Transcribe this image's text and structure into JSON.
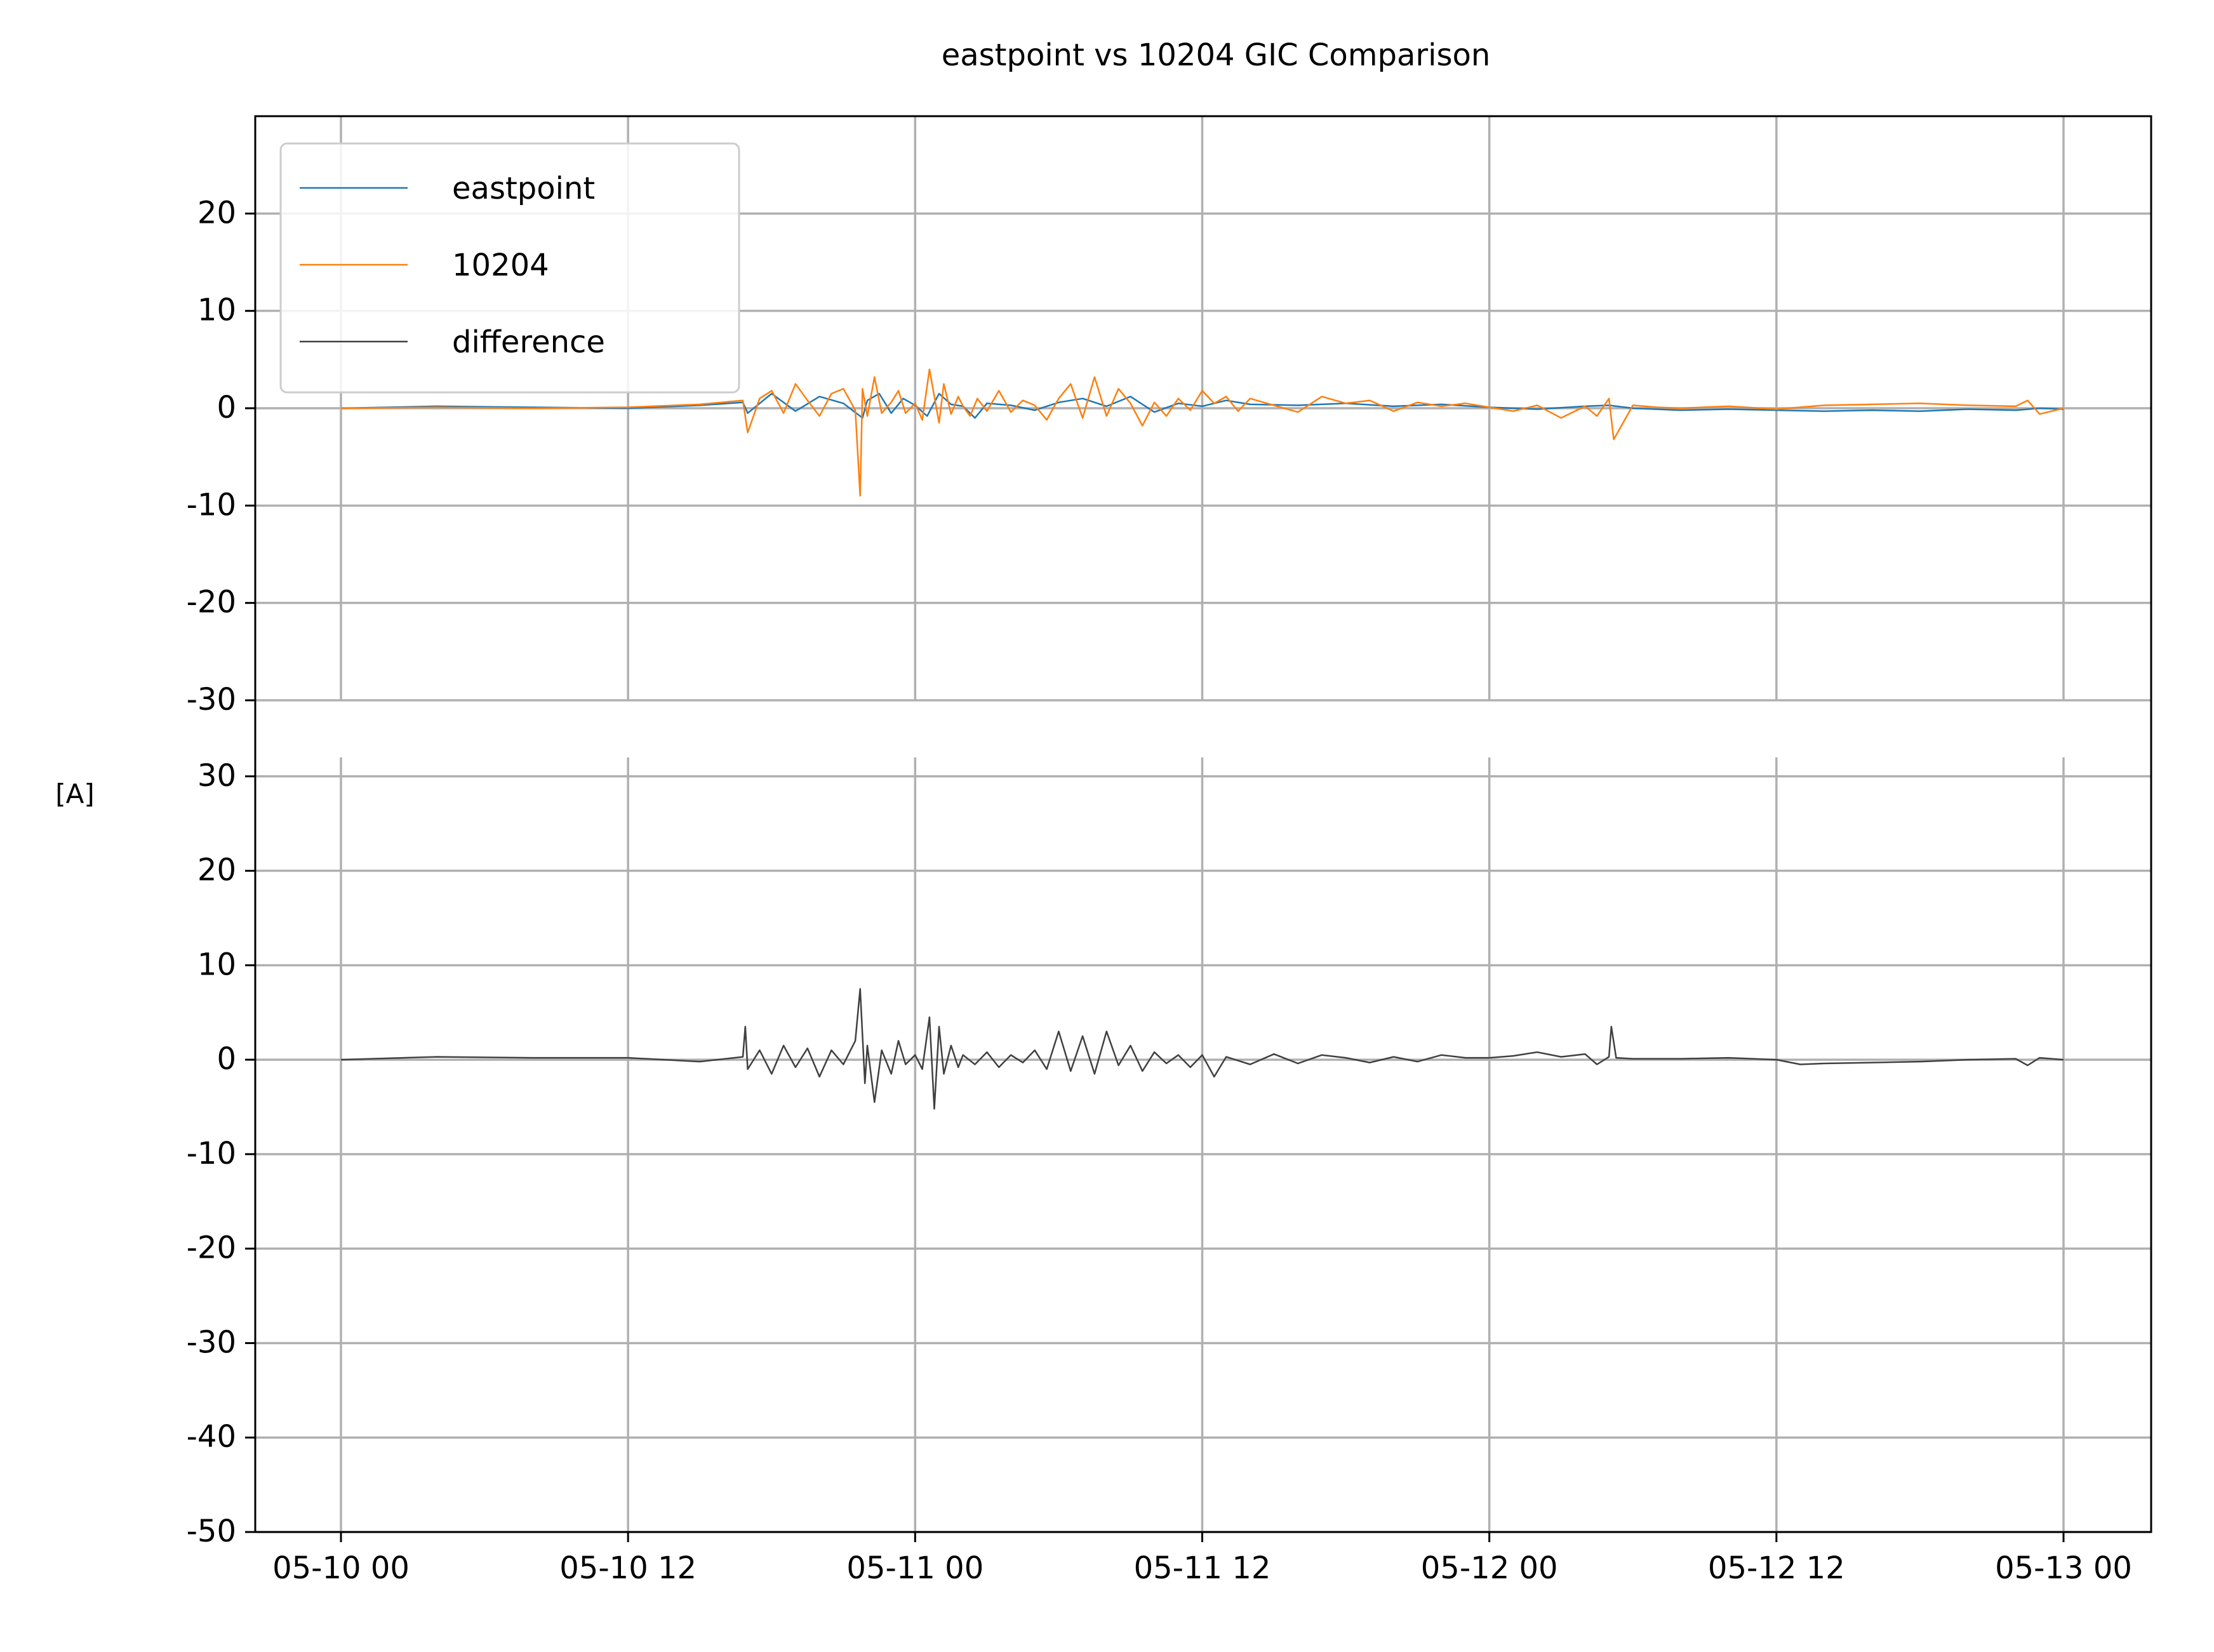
{
  "chart_data": {
    "type": "line",
    "title": "eastpoint vs 10204 GIC Comparison",
    "ylabel": "[A]",
    "xlim": [
      "05-09 20:30",
      "05-13 03:30"
    ],
    "x_ticks": [
      "05-10 00",
      "05-10 12",
      "05-11 00",
      "05-11 12",
      "05-12 00",
      "05-12 12",
      "05-13 00"
    ],
    "x_tick_hours": [
      0,
      12,
      24,
      36,
      48,
      60,
      72
    ],
    "grid": true,
    "colors": {
      "eastpoint": "#1f77b4",
      "10204": "#ff7f0e",
      "difference": "#404040"
    },
    "panels": [
      {
        "id": "top",
        "ylim": [
          -30,
          30
        ],
        "yticks": [
          "20",
          "10",
          "0",
          "-10",
          "-20",
          "-30"
        ],
        "ytick_values": [
          20,
          10,
          0,
          -10,
          -20,
          -30
        ],
        "legend": {
          "placement": "upper-left",
          "entries": [
            "eastpoint",
            "10204",
            "difference"
          ]
        },
        "series": [
          {
            "name": "eastpoint",
            "x_hours": [
              0,
              4,
              8,
              12,
              15,
              16.8,
              17,
              18,
              19,
              20,
              21,
              21.8,
              22,
              22.5,
              23,
              23.5,
              24,
              24.5,
              25,
              25.5,
              26,
              26.5,
              27,
              28,
              29,
              30,
              31,
              32,
              33,
              34,
              35,
              36,
              37,
              38,
              40,
              42,
              44,
              46,
              48,
              50,
              52,
              53,
              54,
              56,
              58,
              60,
              62,
              64,
              66,
              68,
              70,
              71,
              72
            ],
            "y": [
              0,
              0.2,
              0.1,
              0,
              0.3,
              0.6,
              -0.5,
              1.5,
              -0.3,
              1.2,
              0.5,
              -1.0,
              0.8,
              1.5,
              -0.5,
              1.0,
              0.3,
              -0.8,
              1.5,
              0.4,
              0.2,
              -1.0,
              0.5,
              0.3,
              -0.2,
              0.6,
              1.0,
              0.2,
              1.2,
              -0.4,
              0.5,
              0.2,
              0.8,
              0.4,
              0.3,
              0.5,
              0.2,
              0.4,
              0.1,
              -0.1,
              0.2,
              0.3,
              0,
              -0.2,
              -0.1,
              -0.2,
              -0.3,
              -0.2,
              -0.3,
              -0.1,
              -0.2,
              0,
              -0.1
            ]
          },
          {
            "name": "10204",
            "x_hours": [
              0,
              4,
              8,
              12,
              15,
              16.8,
              17,
              17.5,
              18,
              18.5,
              19,
              19.5,
              20,
              20.5,
              21,
              21.5,
              21.7,
              21.8,
              22,
              22.3,
              22.6,
              23,
              23.3,
              23.6,
              24,
              24.3,
              24.6,
              25,
              25.2,
              25.5,
              25.8,
              26,
              26.3,
              26.6,
              27,
              27.5,
              28,
              28.5,
              29,
              29.5,
              30,
              30.5,
              31,
              31.5,
              32,
              32.5,
              33,
              33.5,
              34,
              34.5,
              35,
              35.5,
              36,
              36.5,
              37,
              37.5,
              38,
              39,
              40,
              41,
              42,
              43,
              44,
              45,
              46,
              47,
              48,
              49,
              50,
              51,
              52,
              52.5,
              53,
              53.2,
              54,
              55,
              56,
              58,
              60,
              62,
              64,
              66,
              68,
              70,
              70.5,
              71,
              72
            ],
            "y": [
              0,
              0.1,
              0,
              0.1,
              0.4,
              0.8,
              -2.5,
              1.0,
              1.8,
              -0.5,
              2.5,
              0.8,
              -0.8,
              1.5,
              2.0,
              -0.2,
              -9.0,
              2.0,
              -0.8,
              3.2,
              -0.5,
              0.6,
              1.8,
              -0.5,
              0.5,
              -1.2,
              4.0,
              -1.5,
              2.5,
              -0.6,
              1.2,
              0.2,
              -0.8,
              1.0,
              -0.3,
              1.8,
              -0.4,
              0.8,
              0.3,
              -1.2,
              1.0,
              2.5,
              -1.0,
              3.2,
              -0.8,
              2.0,
              0.5,
              -1.8,
              0.6,
              -0.8,
              1.0,
              -0.2,
              1.8,
              0.5,
              1.2,
              -0.3,
              1.0,
              0.3,
              -0.4,
              1.2,
              0.5,
              0.8,
              -0.3,
              0.6,
              0.2,
              0.5,
              0.1,
              -0.3,
              0.3,
              -1.0,
              0.2,
              -0.8,
              1.0,
              -3.2,
              0.3,
              0.1,
              0,
              0.2,
              -0.1,
              0.3,
              0.4,
              0.5,
              0.3,
              0.2,
              0.8,
              -0.6,
              0
            ]
          }
        ]
      },
      {
        "id": "bottom",
        "ylim": [
          -50,
          32
        ],
        "yticks": [
          "30",
          "20",
          "10",
          "0",
          "-10",
          "-20",
          "-30",
          "-40",
          "-50"
        ],
        "ytick_values": [
          30,
          20,
          10,
          0,
          -10,
          -20,
          -30,
          -40,
          -50
        ],
        "series": [
          {
            "name": "difference",
            "x_hours": [
              0,
              4,
              8,
              12,
              15,
              16.8,
              16.9,
              17,
              17.5,
              18,
              18.5,
              19,
              19.5,
              20,
              20.5,
              21,
              21.5,
              21.7,
              21.9,
              22,
              22.3,
              22.6,
              23,
              23.3,
              23.6,
              24,
              24.3,
              24.6,
              24.8,
              25,
              25.2,
              25.5,
              25.8,
              26,
              26.5,
              27,
              27.5,
              28,
              28.5,
              29,
              29.5,
              30,
              30.5,
              31,
              31.5,
              32,
              32.5,
              33,
              33.5,
              34,
              34.5,
              35,
              35.5,
              36,
              36.5,
              37,
              38,
              39,
              40,
              41,
              42,
              43,
              44,
              45,
              46,
              47,
              48,
              49,
              50,
              51,
              52,
              52.5,
              53,
              53.1,
              53.3,
              54,
              56,
              58,
              60,
              61,
              62,
              64,
              66,
              68,
              70,
              70.5,
              71,
              72
            ],
            "y": [
              0,
              0.3,
              0.2,
              0.2,
              -0.2,
              0.3,
              3.5,
              -1.0,
              1.0,
              -1.5,
              1.5,
              -0.8,
              1.2,
              -1.8,
              1.0,
              -0.5,
              2.0,
              7.5,
              -2.5,
              1.5,
              -4.5,
              1.0,
              -1.5,
              2.0,
              -0.5,
              0.5,
              -1.0,
              4.5,
              -5.2,
              3.5,
              -1.5,
              1.5,
              -0.8,
              0.5,
              -0.5,
              0.8,
              -0.8,
              0.5,
              -0.3,
              1.0,
              -1.0,
              3.0,
              -1.2,
              2.5,
              -1.5,
              3.0,
              -0.6,
              1.5,
              -1.2,
              0.8,
              -0.4,
              0.5,
              -0.8,
              0.5,
              -1.8,
              0.3,
              -0.5,
              0.6,
              -0.4,
              0.5,
              0.2,
              -0.3,
              0.3,
              -0.2,
              0.5,
              0.2,
              0.2,
              0.4,
              0.8,
              0.3,
              0.6,
              -0.5,
              0.3,
              3.5,
              0.2,
              0.1,
              0.1,
              0.2,
              0,
              -0.5,
              -0.4,
              -0.3,
              -0.2,
              0,
              0.1,
              -0.6,
              0.2,
              0
            ]
          }
        ]
      }
    ]
  }
}
